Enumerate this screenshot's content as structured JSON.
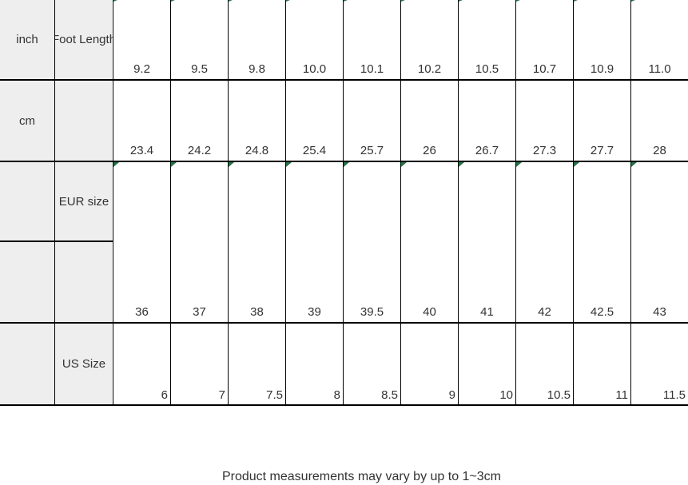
{
  "chart_data": {
    "type": "table",
    "header_label": "Foot Length",
    "row_headers": [
      "inch",
      "cm",
      "EUR size",
      "US Size"
    ],
    "rows": [
      {
        "label": "inch",
        "values": [
          9.2,
          9.5,
          9.8,
          10.0,
          10.1,
          10.2,
          10.5,
          10.7,
          10.9,
          11.0
        ],
        "display": [
          "9.2",
          "9.5",
          "9.8",
          "10.0",
          "10.1",
          "10.2",
          "10.5",
          "10.7",
          "10.9",
          "11.0"
        ]
      },
      {
        "label": "cm",
        "values": [
          23.4,
          24.2,
          24.8,
          25.4,
          25.7,
          26,
          26.7,
          27.3,
          27.7,
          28
        ],
        "display": [
          "23.4",
          "24.2",
          "24.8",
          "25.4",
          "25.7",
          "26",
          "26.7",
          "27.3",
          "27.7",
          "28"
        ]
      },
      {
        "label": "EUR size",
        "values": [
          36,
          37,
          38,
          39,
          39.5,
          40,
          41,
          42,
          42.5,
          43
        ],
        "display": [
          "36",
          "37",
          "38",
          "39",
          "39.5",
          "40",
          "41",
          "42",
          "42.5",
          "43"
        ]
      },
      {
        "label": "US Size",
        "values": [
          6,
          7,
          7.5,
          8,
          8.5,
          9,
          10,
          10.5,
          11,
          11.5
        ],
        "display": [
          "6",
          "7",
          "7.5",
          "8",
          "8.5",
          "9",
          "10",
          "10.5",
          "11",
          "11.5"
        ]
      }
    ]
  },
  "footnote": {
    "text": "Product measurements may vary by up to 1~3cm"
  },
  "colors": {
    "label_bg": "#eeeeee",
    "grid_line": "#000000",
    "indicator_green": "#217346",
    "text": "#333333"
  }
}
